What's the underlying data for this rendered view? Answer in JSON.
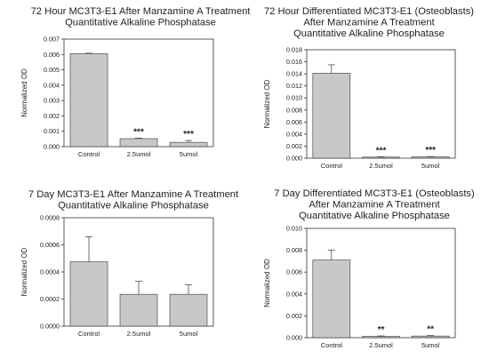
{
  "chart_data": [
    {
      "type": "bar",
      "title": [
        "72 Hour MC3T3-E1 After Manzamine A Treatment",
        "Quantitative Alkaline Phosphatase"
      ],
      "ylabel": "Normalized OD",
      "xlabel": "",
      "categories": [
        "Control",
        "2.5umol",
        "5umol"
      ],
      "values": [
        0.00605,
        0.00052,
        0.00028
      ],
      "errors": [
        3e-05,
        3e-05,
        0.00012
      ],
      "significance": [
        "",
        "***",
        "***"
      ],
      "ylim": [
        0,
        0.007
      ],
      "yticks": [
        0.0,
        0.001,
        0.002,
        0.003,
        0.004,
        0.005,
        0.006,
        0.007
      ],
      "ytick_labels": [
        "0.000",
        "0.001",
        "0.002",
        "0.003",
        "0.004",
        "0.005",
        "0.006",
        "0.007"
      ],
      "bar_color": "#c8c8c8"
    },
    {
      "type": "bar",
      "title": [
        "72 Hour Differentiated MC3T3-E1 (Osteoblasts)",
        "After Manzamine A Treatment",
        "Quantitative Alkaline Phosphatase"
      ],
      "ylabel": "Normalized OD",
      "xlabel": "",
      "categories": [
        "Control",
        "2.5umol",
        "5umol"
      ],
      "values": [
        0.0141,
        0.00018,
        0.00022
      ],
      "errors": [
        0.0014,
        5e-05,
        5e-05
      ],
      "significance": [
        "",
        "***",
        "***"
      ],
      "ylim": [
        0,
        0.018
      ],
      "yticks": [
        0.0,
        0.002,
        0.004,
        0.006,
        0.008,
        0.01,
        0.012,
        0.014,
        0.016,
        0.018
      ],
      "ytick_labels": [
        "0.000",
        "0.002",
        "0.004",
        "0.006",
        "0.008",
        "0.010",
        "0.012",
        "0.014",
        "0.016",
        "0.018"
      ],
      "bar_color": "#c8c8c8"
    },
    {
      "type": "bar",
      "title": [
        "7 Day MC3T3-E1 After Manzamine A Treatment",
        "Quantitative Alkaline Phosphatase"
      ],
      "ylabel": "Normalized OD",
      "xlabel": "",
      "categories": [
        "Control",
        "2.5umol",
        "5umol"
      ],
      "values": [
        0.000475,
        0.000235,
        0.000235
      ],
      "errors": [
        0.000185,
        9.5e-05,
        7e-05
      ],
      "significance": [
        "",
        "",
        ""
      ],
      "ylim": [
        0,
        0.0008
      ],
      "yticks": [
        0.0,
        0.0002,
        0.0004,
        0.0006,
        0.0008
      ],
      "ytick_labels": [
        "0.0000",
        "0.0002",
        "0.0004",
        "0.0006",
        "0.0008"
      ],
      "bar_color": "#c8c8c8"
    },
    {
      "type": "bar",
      "title": [
        "7 Day Differentiated MC3T3-E1 (Osteoblasts)",
        "After Manzamine A Treatment",
        "Quantitative Alkaline Phosphatase"
      ],
      "ylabel": "Normalized OD",
      "xlabel": "",
      "categories": [
        "Control",
        "2.5umol",
        "5umol"
      ],
      "values": [
        0.0071,
        0.00012,
        0.00015
      ],
      "errors": [
        0.0009,
        4e-05,
        4e-05
      ],
      "significance": [
        "",
        "**",
        "**"
      ],
      "ylim": [
        0,
        0.01
      ],
      "yticks": [
        0.0,
        0.002,
        0.004,
        0.006,
        0.008,
        0.01
      ],
      "ytick_labels": [
        "0.000",
        "0.002",
        "0.004",
        "0.006",
        "0.008",
        "0.010"
      ],
      "bar_color": "#c8c8c8"
    }
  ]
}
